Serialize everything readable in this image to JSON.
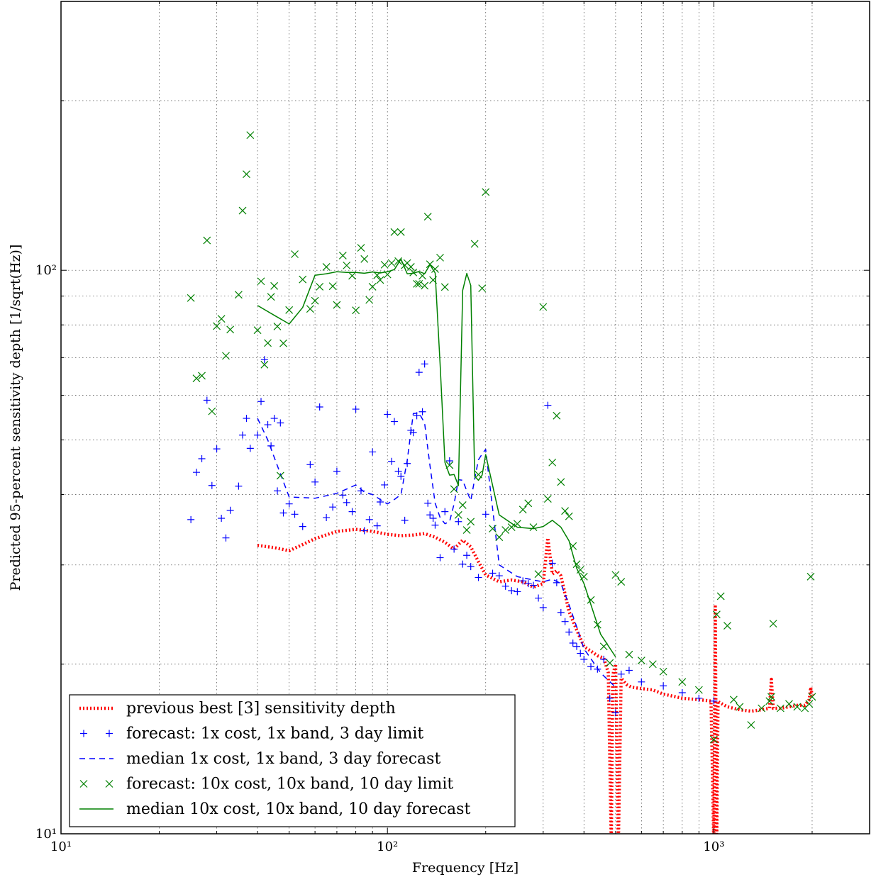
{
  "chart_data": {
    "type": "scatter",
    "xlabel": "Frequency [Hz]",
    "ylabel": "Predicted 95-percent sensitivity depth [1/sqrt(Hz)]",
    "xscale": "log",
    "yscale": "log",
    "xlim": [
      10,
      3000
    ],
    "ylim": [
      10,
      300
    ],
    "grid": true,
    "legend_position": "lower-left",
    "x_ticks": [
      {
        "value": 10,
        "label": "10¹"
      },
      {
        "value": 100,
        "label": "10²"
      },
      {
        "value": 1000,
        "label": "10³"
      }
    ],
    "y_ticks": [
      {
        "value": 10,
        "label": "10¹"
      },
      {
        "value": 100,
        "label": "10²"
      }
    ],
    "series": [
      {
        "name": "previous best [3] sensitivity depth",
        "style": "dotted-line",
        "color": "#ff0000",
        "x": [
          40,
          45,
          50,
          55,
          60,
          70,
          80,
          90,
          100,
          110,
          120,
          130,
          140,
          150,
          160,
          170,
          180,
          190,
          200,
          220,
          240,
          260,
          280,
          300,
          310,
          320,
          330,
          340,
          360,
          380,
          400,
          420,
          440,
          460,
          475,
          485,
          490,
          500,
          510,
          520,
          540,
          560,
          600,
          650,
          700,
          800,
          900,
          980,
          1000,
          1010,
          1020,
          1030,
          1040,
          1100,
          1200,
          1300,
          1400,
          1480,
          1500,
          1520,
          1600,
          1700,
          1800,
          1900,
          1960,
          1980,
          2000
        ],
        "y": [
          32.5,
          32.2,
          31.8,
          32.6,
          33.4,
          34.4,
          34.7,
          34.4,
          34.0,
          33.8,
          33.9,
          34.1,
          33.6,
          32.9,
          32.0,
          33.2,
          32.3,
          30.4,
          28.8,
          28.0,
          28.2,
          28.0,
          27.4,
          27.8,
          33.5,
          28.9,
          29.3,
          28.7,
          24.8,
          23.0,
          21.5,
          21.1,
          20.7,
          20.5,
          19.3,
          9.5,
          19.1,
          20.0,
          9.5,
          18.9,
          18.4,
          18.2,
          18.1,
          18.0,
          17.7,
          17.4,
          17.3,
          17.2,
          9.5,
          25.5,
          9.5,
          17.2,
          17.1,
          16.8,
          16.6,
          16.5,
          16.6,
          16.7,
          18.8,
          16.7,
          16.7,
          16.8,
          16.9,
          16.9,
          17.3,
          18.2,
          17.6
        ]
      },
      {
        "name": "forecast: 1x cost, 1x band, 3 day limit",
        "style": "plus-markers",
        "color": "#0000ff",
        "x": [
          25,
          26,
          27,
          28,
          29,
          30,
          31,
          32,
          33,
          35,
          36,
          37,
          38,
          40,
          41,
          42,
          43,
          44,
          45,
          46,
          47,
          48,
          50,
          52,
          55,
          58,
          60,
          62,
          65,
          68,
          70,
          73,
          75,
          78,
          80,
          83,
          85,
          88,
          90,
          93,
          95,
          98,
          100,
          103,
          105,
          108,
          110,
          113,
          115,
          118,
          120,
          123,
          125,
          128,
          130,
          133,
          135,
          138,
          140,
          145,
          150,
          155,
          160,
          165,
          170,
          175,
          180,
          190,
          200,
          210,
          220,
          230,
          240,
          250,
          260,
          270,
          280,
          290,
          300,
          310,
          320,
          330,
          340,
          350,
          360,
          370,
          380,
          390,
          400,
          420,
          440,
          460,
          480,
          500,
          520,
          550,
          600,
          700,
          800,
          900,
          1000
        ],
        "y": [
          36.1,
          43.8,
          46.3,
          58.8,
          41.5,
          48.2,
          36.3,
          33.5,
          37.5,
          41.4,
          51.0,
          54.6,
          48.3,
          51.0,
          58.5,
          69.4,
          53.2,
          48.8,
          54.6,
          40.6,
          53.6,
          37.1,
          38.5,
          36.9,
          35.1,
          45.2,
          42.1,
          57.2,
          36.4,
          38.0,
          44.0,
          39.9,
          38.7,
          37.3,
          56.7,
          40.6,
          34.5,
          36.1,
          47.6,
          35.2,
          38.8,
          41.6,
          55.5,
          45.8,
          53.9,
          44.0,
          43.1,
          36.0,
          45.4,
          52.0,
          51.5,
          55.2,
          65.9,
          56.1,
          68.2,
          38.6,
          36.8,
          36.3,
          35.3,
          30.9,
          37.3,
          45.9,
          32.0,
          35.8,
          30.1,
          31.2,
          29.8,
          28.5,
          36.9,
          29.0,
          28.7,
          27.5,
          27.0,
          26.9,
          28.1,
          27.8,
          27.6,
          26.2,
          25.2,
          57.6,
          30.2,
          27.9,
          24.7,
          23.8,
          22.8,
          21.8,
          21.5,
          20.9,
          20.4,
          19.8,
          19.6,
          20.4,
          17.4,
          16.4,
          19.2,
          19.5,
          18.6,
          18.3,
          17.8,
          17.4,
          17.2
        ]
      },
      {
        "name": "median 1x cost, 1x band, 3 day forecast",
        "style": "dashed-line",
        "color": "#0000ff",
        "x": [
          40,
          43,
          46,
          50,
          55,
          60,
          65,
          70,
          75,
          80,
          85,
          90,
          95,
          100,
          105,
          110,
          115,
          120,
          125,
          130,
          135,
          140,
          145,
          150,
          155,
          160,
          165,
          170,
          175,
          180,
          185,
          190,
          195,
          200,
          220,
          250,
          280,
          300,
          320,
          340,
          360,
          380,
          400,
          450,
          500
        ],
        "y": [
          54.6,
          50.0,
          45.0,
          39.6,
          39.5,
          39.4,
          39.8,
          40.2,
          40.9,
          41.6,
          40.4,
          40.0,
          39.2,
          38.5,
          39.2,
          40.0,
          46.0,
          55.7,
          55.8,
          53.6,
          45.0,
          38.6,
          36.4,
          35.5,
          35.8,
          38.5,
          42.5,
          42.4,
          40.6,
          39.0,
          42.6,
          46.1,
          47.2,
          48.1,
          30.0,
          28.6,
          28.2,
          28.0,
          28.3,
          27.8,
          25.5,
          23.3,
          21.3,
          19.3,
          18.2
        ]
      },
      {
        "name": "forecast: 10x cost, 10x band, 10 day limit",
        "style": "cross-markers",
        "color": "#008000",
        "x": [
          25,
          26,
          27,
          28,
          29,
          30,
          31,
          32,
          33,
          35,
          36,
          37,
          38,
          40,
          41,
          42,
          43,
          44,
          45,
          46,
          47,
          48,
          50,
          52,
          55,
          58,
          60,
          62,
          65,
          68,
          70,
          73,
          75,
          78,
          80,
          83,
          85,
          88,
          90,
          93,
          95,
          98,
          100,
          103,
          105,
          108,
          110,
          113,
          115,
          118,
          120,
          123,
          125,
          128,
          130,
          133,
          135,
          138,
          140,
          145,
          150,
          155,
          160,
          165,
          170,
          175,
          180,
          185,
          190,
          195,
          200,
          210,
          220,
          230,
          240,
          250,
          260,
          270,
          280,
          290,
          300,
          310,
          320,
          330,
          340,
          350,
          360,
          370,
          380,
          390,
          400,
          420,
          440,
          460,
          480,
          500,
          520,
          550,
          600,
          650,
          700,
          800,
          900,
          1000,
          1020,
          1050,
          1100,
          1150,
          1200,
          1300,
          1400,
          1480,
          1500,
          1520,
          1600,
          1700,
          1800,
          1900,
          1960,
          1980,
          2000
        ],
        "y": [
          89.3,
          64.3,
          65.0,
          113.0,
          56.2,
          79.6,
          82.0,
          70.5,
          78.5,
          90.5,
          127.6,
          148.1,
          173.7,
          78.3,
          95.6,
          68.0,
          74.3,
          89.7,
          93.8,
          79.5,
          43.2,
          74.2,
          85.0,
          106.8,
          96.3,
          85.4,
          88.3,
          93.5,
          101.4,
          93.7,
          86.8,
          106.2,
          102.0,
          97.8,
          84.9,
          109.6,
          104.7,
          88.6,
          93.5,
          98.0,
          96.1,
          102.3,
          98.3,
          103.0,
          116.9,
          103.8,
          116.9,
          102.1,
          103.0,
          101.4,
          99.1,
          94.6,
          94.6,
          97.8,
          93.9,
          124.5,
          102.5,
          96.1,
          100.5,
          105.3,
          93.4,
          45.1,
          40.9,
          36.8,
          38.3,
          34.6,
          35.8,
          111.4,
          43.4,
          92.9,
          137.7,
          34.8,
          33.6,
          34.6,
          35.0,
          35.5,
          37.6,
          38.6,
          35.0,
          28.9,
          86.1,
          39.3,
          45.6,
          55.2,
          42.1,
          37.4,
          36.6,
          32.4,
          30.1,
          29.4,
          28.6,
          26.0,
          23.5,
          21.5,
          20.1,
          28.8,
          28.0,
          20.8,
          20.3,
          20.0,
          19.4,
          18.6,
          18.0,
          14.7,
          24.5,
          26.4,
          23.4,
          17.3,
          16.8,
          15.6,
          16.7,
          17.2,
          17.5,
          23.6,
          16.7,
          17.0,
          16.8,
          16.7,
          17.0,
          28.6,
          17.5
        ]
      },
      {
        "name": "median 10x cost, 10x band, 10 day forecast",
        "style": "solid-line",
        "color": "#008000",
        "x": [
          40,
          45,
          50,
          55,
          60,
          65,
          70,
          75,
          80,
          85,
          90,
          95,
          100,
          105,
          110,
          115,
          120,
          125,
          130,
          135,
          140,
          145,
          150,
          155,
          160,
          165,
          170,
          175,
          180,
          185,
          190,
          195,
          200,
          220,
          250,
          280,
          300,
          320,
          340,
          360,
          380,
          400,
          450,
          500
        ],
        "y": [
          86.6,
          83.2,
          80.3,
          85.9,
          98.0,
          98.6,
          99.4,
          99.1,
          99.1,
          98.8,
          99.3,
          98.9,
          99.4,
          100.3,
          104.7,
          98.6,
          98.8,
          99.5,
          98.6,
          102.3,
          98.9,
          68.0,
          45.6,
          43.3,
          43.4,
          41.5,
          92.1,
          98.7,
          94.0,
          43.1,
          42.4,
          43.3,
          47.1,
          36.8,
          35.0,
          34.8,
          35.1,
          36.0,
          35.0,
          33.1,
          29.6,
          27.8,
          22.6,
          20.6
        ]
      }
    ]
  }
}
